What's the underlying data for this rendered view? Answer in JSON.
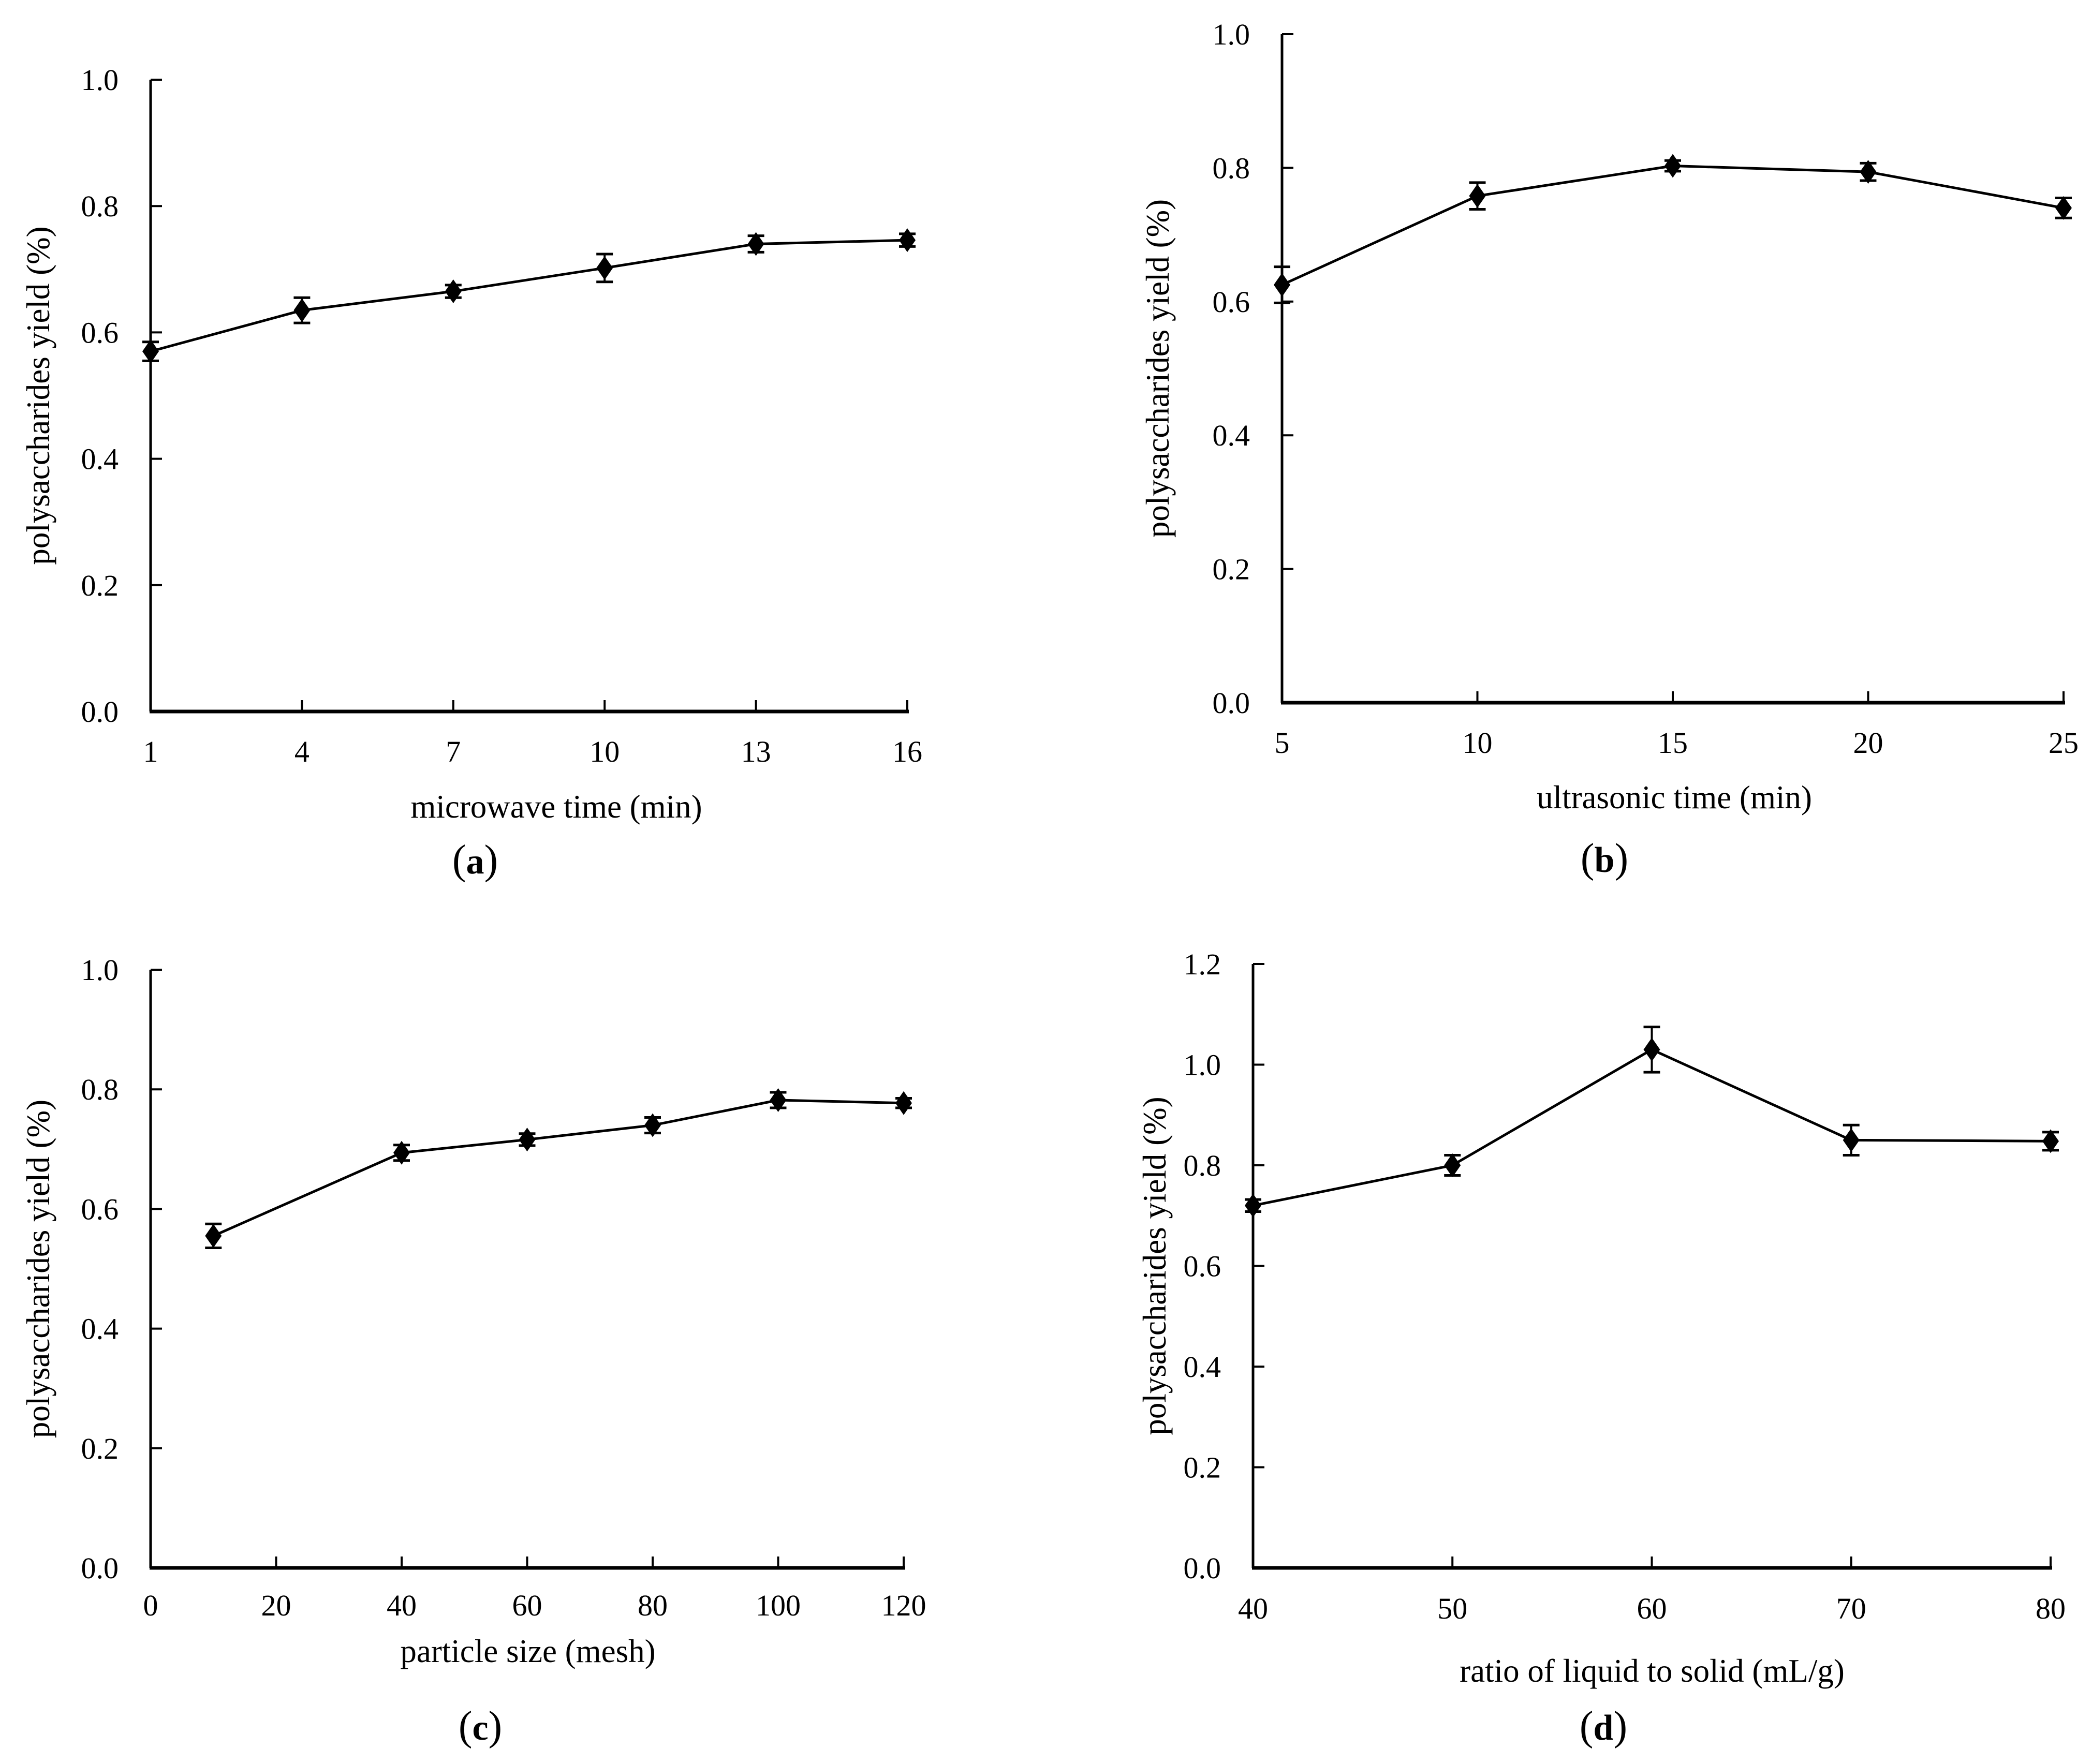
{
  "figure": {
    "background": "#ffffff",
    "ink_color": "#000000",
    "marker_shape": "filled-diamond",
    "ylabel_shared": "polysaccharides yield (%)"
  },
  "chart_data": [
    {
      "panel": "a",
      "type": "line",
      "caption_letter": "a",
      "xlabel": "microwave time (min)",
      "ylabel": "polysaccharides yield (%)",
      "x": [
        1,
        4,
        7,
        10,
        13,
        16
      ],
      "y": [
        0.57,
        0.635,
        0.665,
        0.702,
        0.74,
        0.746
      ],
      "y_err": [
        0.015,
        0.02,
        0.01,
        0.022,
        0.013,
        0.01
      ],
      "xlim": [
        1,
        16
      ],
      "ylim": [
        0,
        1.0
      ],
      "xticks": [
        1,
        4,
        7,
        10,
        13,
        16
      ],
      "xticklabels": [
        "1",
        "4",
        "7",
        "10",
        "13",
        "16"
      ],
      "yticks": [
        0.0,
        0.2,
        0.4,
        0.6,
        0.8,
        1.0
      ],
      "yticklabels": [
        "0.0",
        "0.2",
        "0.4",
        "0.6",
        "0.8",
        "1.0"
      ],
      "legend": "none",
      "grid": false
    },
    {
      "panel": "b",
      "type": "line",
      "caption_letter": "b",
      "xlabel": "ultrasonic time (min)",
      "ylabel": "polysaccharides yield (%)",
      "x": [
        5,
        10,
        15,
        20,
        25
      ],
      "y": [
        0.625,
        0.758,
        0.803,
        0.794,
        0.74
      ],
      "y_err": [
        0.027,
        0.02,
        0.008,
        0.013,
        0.015
      ],
      "xlim": [
        5,
        25
      ],
      "ylim": [
        0,
        1.0
      ],
      "xticks": [
        5,
        10,
        15,
        20,
        25
      ],
      "xticklabels": [
        "5",
        "10",
        "15",
        "20",
        "25"
      ],
      "yticks": [
        0.0,
        0.2,
        0.4,
        0.6,
        0.8,
        1.0
      ],
      "yticklabels": [
        "0.0",
        "0.2",
        "0.4",
        "0.6",
        "0.8",
        "1.0"
      ],
      "legend": "none",
      "grid": false
    },
    {
      "panel": "c",
      "type": "line",
      "caption_letter": "c",
      "xlabel": "particle size (mesh)",
      "ylabel": "polysaccharides yield (%)",
      "x": [
        10,
        40,
        60,
        80,
        100,
        120
      ],
      "y": [
        0.555,
        0.694,
        0.716,
        0.74,
        0.782,
        0.777
      ],
      "y_err": [
        0.02,
        0.013,
        0.01,
        0.013,
        0.013,
        0.008
      ],
      "xlim": [
        0,
        120
      ],
      "ylim": [
        0,
        1.0
      ],
      "xticks": [
        0,
        20,
        40,
        60,
        80,
        100,
        120
      ],
      "xticklabels": [
        "0",
        "20",
        "40",
        "60",
        "80",
        "100",
        "120"
      ],
      "yticks": [
        0.0,
        0.2,
        0.4,
        0.6,
        0.8,
        1.0
      ],
      "yticklabels": [
        "0.0",
        "0.2",
        "0.4",
        "0.6",
        "0.8",
        "1.0"
      ],
      "legend": "none",
      "grid": false
    },
    {
      "panel": "d",
      "type": "line",
      "caption_letter": "d",
      "xlabel": "ratio of liquid to solid (mL/g)",
      "ylabel": "polysaccharides yield (%)",
      "x": [
        40,
        50,
        60,
        70,
        80
      ],
      "y": [
        0.72,
        0.8,
        1.03,
        0.85,
        0.848
      ],
      "y_err": [
        0.012,
        0.02,
        0.045,
        0.03,
        0.018
      ],
      "xlim": [
        40,
        80
      ],
      "ylim": [
        0,
        1.2
      ],
      "xticks": [
        40,
        50,
        60,
        70,
        80
      ],
      "xticklabels": [
        "40",
        "50",
        "60",
        "70",
        "80"
      ],
      "yticks": [
        0.0,
        0.2,
        0.4,
        0.6,
        0.8,
        1.0,
        1.2
      ],
      "yticklabels": [
        "0.0",
        "0.2",
        "0.4",
        "0.6",
        "0.8",
        "1.0",
        "1.2"
      ],
      "legend": "none",
      "grid": false
    }
  ]
}
